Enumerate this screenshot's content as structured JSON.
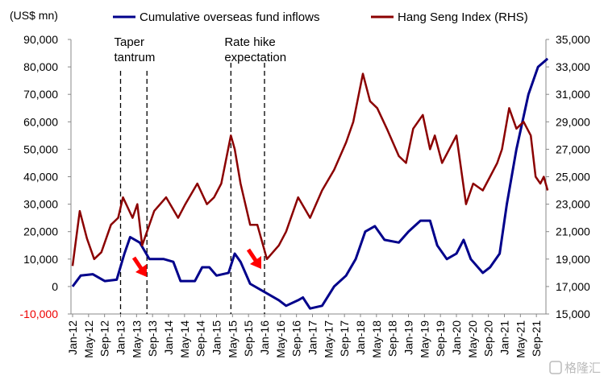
{
  "chart_data": {
    "type": "line",
    "title": "",
    "ylabel": "(US$ mn)",
    "ylim": [
      -10000,
      90000
    ],
    "y2lim": [
      15000,
      35000
    ],
    "yticks": [
      "-10,000",
      "0",
      "10,000",
      "20,000",
      "30,000",
      "40,000",
      "50,000",
      "60,000",
      "70,000",
      "80,000",
      "90,000"
    ],
    "y2ticks": [
      "15,000",
      "17,000",
      "19,000",
      "21,000",
      "23,000",
      "25,000",
      "27,000",
      "29,000",
      "31,000",
      "33,000",
      "35,000"
    ],
    "xticks": [
      "Jan-12",
      "May-12",
      "Sep-12",
      "Jan-13",
      "May-13",
      "Sep-13",
      "Jan-14",
      "May-14",
      "Sep-14",
      "Jan-15",
      "May-15",
      "Sep-15",
      "Jan-16",
      "May-16",
      "Sep-16",
      "Jan-17",
      "May-17",
      "Sep-17",
      "Jan-18",
      "May-18",
      "Sep-18",
      "Jan-19",
      "May-19",
      "Sep-19",
      "Jan-20",
      "May-20",
      "Sep-20",
      "Jan-21",
      "May-21",
      "Sep-21"
    ],
    "legend": "top",
    "series": [
      {
        "name": "Cumulative overseas fund inflows",
        "axis": "left",
        "color": "#00008B",
        "x": [
          2012.0,
          2012.17,
          2012.42,
          2012.67,
          2012.92,
          2013.08,
          2013.2,
          2013.4,
          2013.6,
          2013.9,
          2014.1,
          2014.25,
          2014.55,
          2014.7,
          2014.85,
          2015.0,
          2015.25,
          2015.38,
          2015.5,
          2015.7,
          2016.0,
          2016.3,
          2016.45,
          2016.7,
          2016.8,
          2016.95,
          2017.2,
          2017.45,
          2017.7,
          2017.9,
          2018.1,
          2018.3,
          2018.5,
          2018.8,
          2019.0,
          2019.25,
          2019.45,
          2019.6,
          2019.8,
          2020.0,
          2020.15,
          2020.3,
          2020.55,
          2020.7,
          2020.9,
          2021.05,
          2021.25,
          2021.5,
          2021.7,
          2021.9
        ],
        "y": [
          0,
          4000,
          4500,
          2000,
          2500,
          12000,
          18000,
          16000,
          10000,
          10000,
          9000,
          2000,
          2000,
          7000,
          7000,
          4000,
          5000,
          12000,
          9000,
          1000,
          -2000,
          -5000,
          -7000,
          -5000,
          -4000,
          -8000,
          -7000,
          0,
          4000,
          10000,
          20000,
          22000,
          17000,
          16000,
          20000,
          24000,
          24000,
          15000,
          10000,
          12000,
          17000,
          10000,
          5000,
          7000,
          12000,
          30000,
          50000,
          70000,
          80000,
          83000
        ]
      },
      {
        "name": "Hang Seng Index (RHS)",
        "axis": "right",
        "color": "#8B0000",
        "x": [
          2012.0,
          2012.15,
          2012.3,
          2012.45,
          2012.6,
          2012.8,
          2012.95,
          2013.05,
          2013.25,
          2013.35,
          2013.45,
          2013.7,
          2013.95,
          2014.2,
          2014.35,
          2014.6,
          2014.8,
          2014.95,
          2015.1,
          2015.3,
          2015.38,
          2015.5,
          2015.7,
          2015.85,
          2016.05,
          2016.3,
          2016.45,
          2016.7,
          2016.95,
          2017.2,
          2017.45,
          2017.7,
          2017.85,
          2018.05,
          2018.2,
          2018.35,
          2018.55,
          2018.8,
          2018.95,
          2019.1,
          2019.3,
          2019.45,
          2019.55,
          2019.7,
          2019.85,
          2020.0,
          2020.2,
          2020.35,
          2020.55,
          2020.7,
          2020.85,
          2020.95,
          2021.1,
          2021.25,
          2021.4,
          2021.55,
          2021.65,
          2021.75,
          2021.82,
          2021.9
        ],
        "y": [
          18500,
          22500,
          20500,
          19000,
          19500,
          21500,
          22000,
          23500,
          22000,
          23000,
          20000,
          22500,
          23500,
          22000,
          23000,
          24500,
          23000,
          23500,
          24500,
          28000,
          27000,
          24500,
          21500,
          21500,
          19000,
          20000,
          21000,
          23500,
          22000,
          24000,
          25500,
          27500,
          29000,
          32500,
          30500,
          30000,
          28500,
          26500,
          26000,
          28500,
          29500,
          27000,
          28000,
          26000,
          27000,
          28000,
          23000,
          24500,
          24000,
          25000,
          26000,
          27000,
          30000,
          28500,
          29000,
          28000,
          25000,
          24500,
          25000,
          24000
        ]
      }
    ],
    "annotations": [
      {
        "text_lines": [
          "Taper",
          "tantrum"
        ],
        "from": 2013.0,
        "to": 2013.55
      },
      {
        "text_lines": [
          "Rate hike",
          "expectation"
        ],
        "from": 2015.3,
        "to": 2016.0
      }
    ]
  },
  "watermark": "格隆汇"
}
